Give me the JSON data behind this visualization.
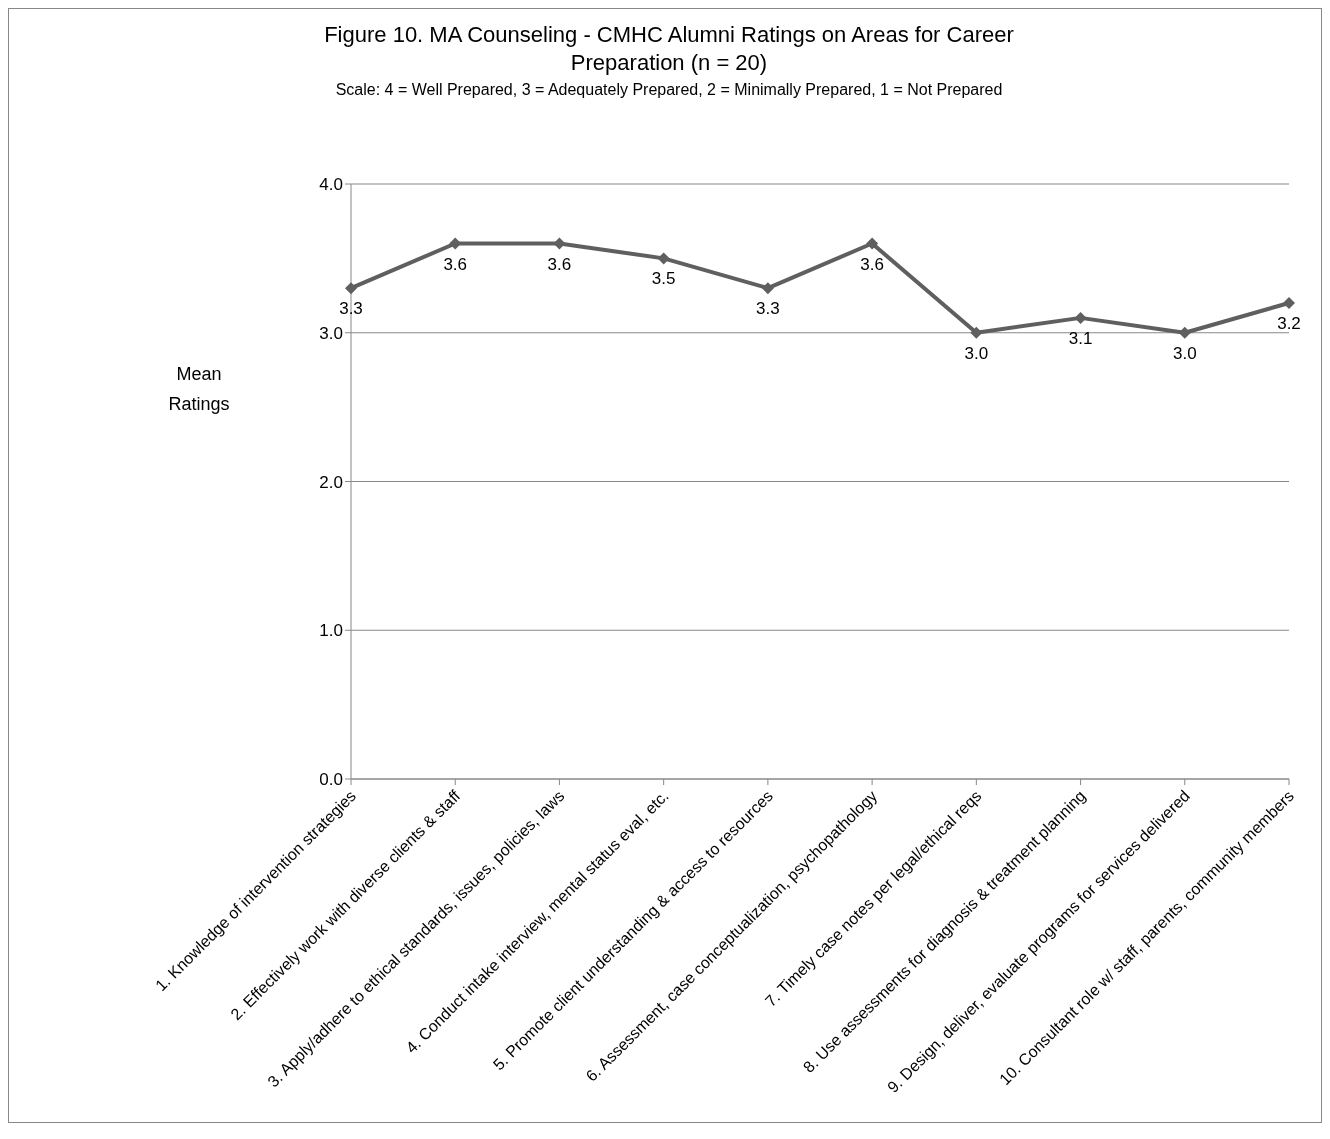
{
  "chart_data": {
    "type": "line",
    "title": "Figure 10. MA Counseling - CMHC Alumni Ratings on Areas for Career Preparation (n = 20)",
    "subtitle": "Scale:  4 = Well Prepared, 3 = Adequately Prepared, 2 = Minimally Prepared, 1 = Not Prepared",
    "ylabel": "Mean Ratings",
    "categories": [
      "1. Knowledge of intervention strategies",
      "2. Effectively work with diverse clients & staff",
      "3. Apply/adhere to ethical standards, issues, policies, laws",
      "4. Conduct intake interview, mental status eval, etc.",
      "5. Promote client understanding & access to resources",
      "6. Assessment, case conceptualization, psychopathology",
      "7. Timely case notes per legal/ethical reqs",
      "8. Use assessments for diagnosis & treatment planning",
      "9. Design, deliver, evaluate programs for services delivered",
      "10. Consultant role w/ staff, parents, community members"
    ],
    "series": [
      {
        "color": "#5f5f5f",
        "values": [
          3.3,
          3.6,
          3.6,
          3.5,
          3.3,
          3.6,
          3.0,
          3.1,
          3.0,
          3.2
        ],
        "value_labels": [
          "3.3",
          "3.6",
          "3.6",
          "3.5",
          "3.3",
          "3.6",
          "3.0",
          "3.1",
          "3.0",
          "3.2"
        ]
      }
    ],
    "ylim": [
      0,
      4
    ],
    "yticks": [
      {
        "value": 0,
        "label": "0.0"
      },
      {
        "value": 1,
        "label": "1.0"
      },
      {
        "value": 2,
        "label": "2.0"
      },
      {
        "value": 3,
        "label": "3.0"
      },
      {
        "value": 4,
        "label": "4.0"
      }
    ],
    "grid": "y",
    "legend": false,
    "marker": "diamond",
    "line_style": "solid"
  }
}
